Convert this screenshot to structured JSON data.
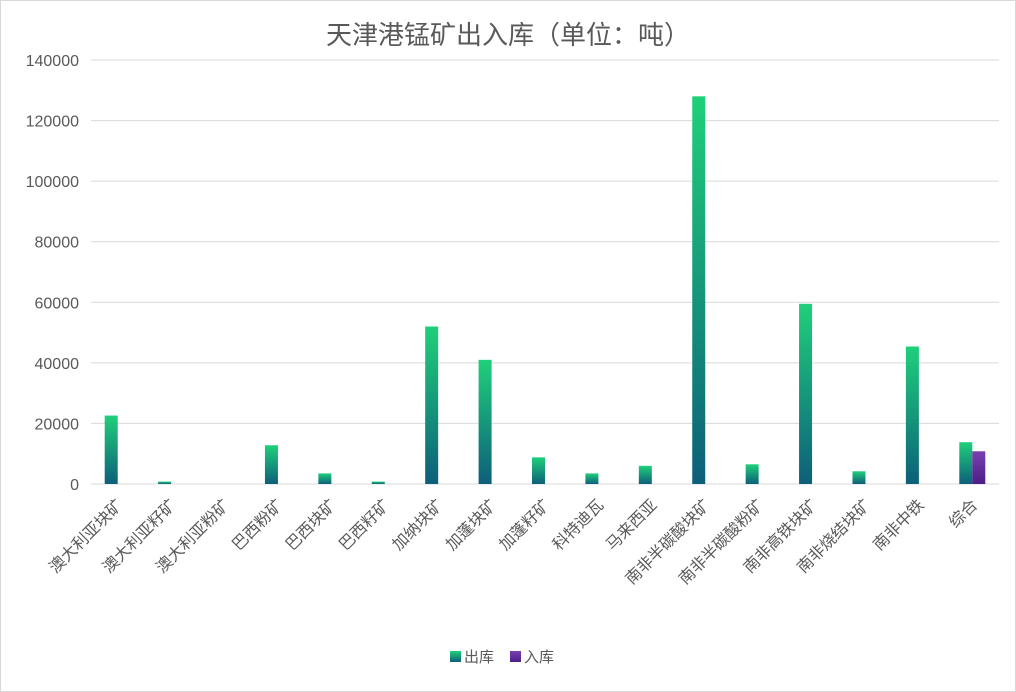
{
  "chart_data": {
    "type": "bar",
    "title": "天津港锰矿出入库（单位：吨）",
    "xlabel": "",
    "ylabel": "",
    "ylim": [
      0,
      140000
    ],
    "yticks": [
      0,
      20000,
      40000,
      60000,
      80000,
      100000,
      120000,
      140000
    ],
    "grid": true,
    "legend": "bottom",
    "categories": [
      "澳大利亚块矿",
      "澳大利亚籽矿",
      "澳大利亚粉矿",
      "巴西粉矿",
      "巴西块矿",
      "巴西籽矿",
      "加纳块矿",
      "加蓬块矿",
      "加蓬籽矿",
      "科特迪瓦",
      "马来西亚",
      "南非半碳酸块矿",
      "南非半碳酸粉矿",
      "南非高铁块矿",
      "南非烧结块矿",
      "南非中铁",
      "综合"
    ],
    "series": [
      {
        "name": "出库",
        "color_top": "#1fd07a",
        "color_bottom": "#0d5f7a",
        "values": [
          22600,
          800,
          0,
          12800,
          3500,
          800,
          52000,
          41000,
          8800,
          3500,
          6000,
          128000,
          6500,
          59500,
          4200,
          45400,
          13800
        ]
      },
      {
        "name": "入库",
        "color_top": "#7b3fb0",
        "color_bottom": "#4b1f88",
        "values": [
          0,
          0,
          0,
          0,
          0,
          0,
          0,
          0,
          0,
          0,
          0,
          0,
          0,
          0,
          0,
          0,
          10800
        ]
      }
    ]
  }
}
